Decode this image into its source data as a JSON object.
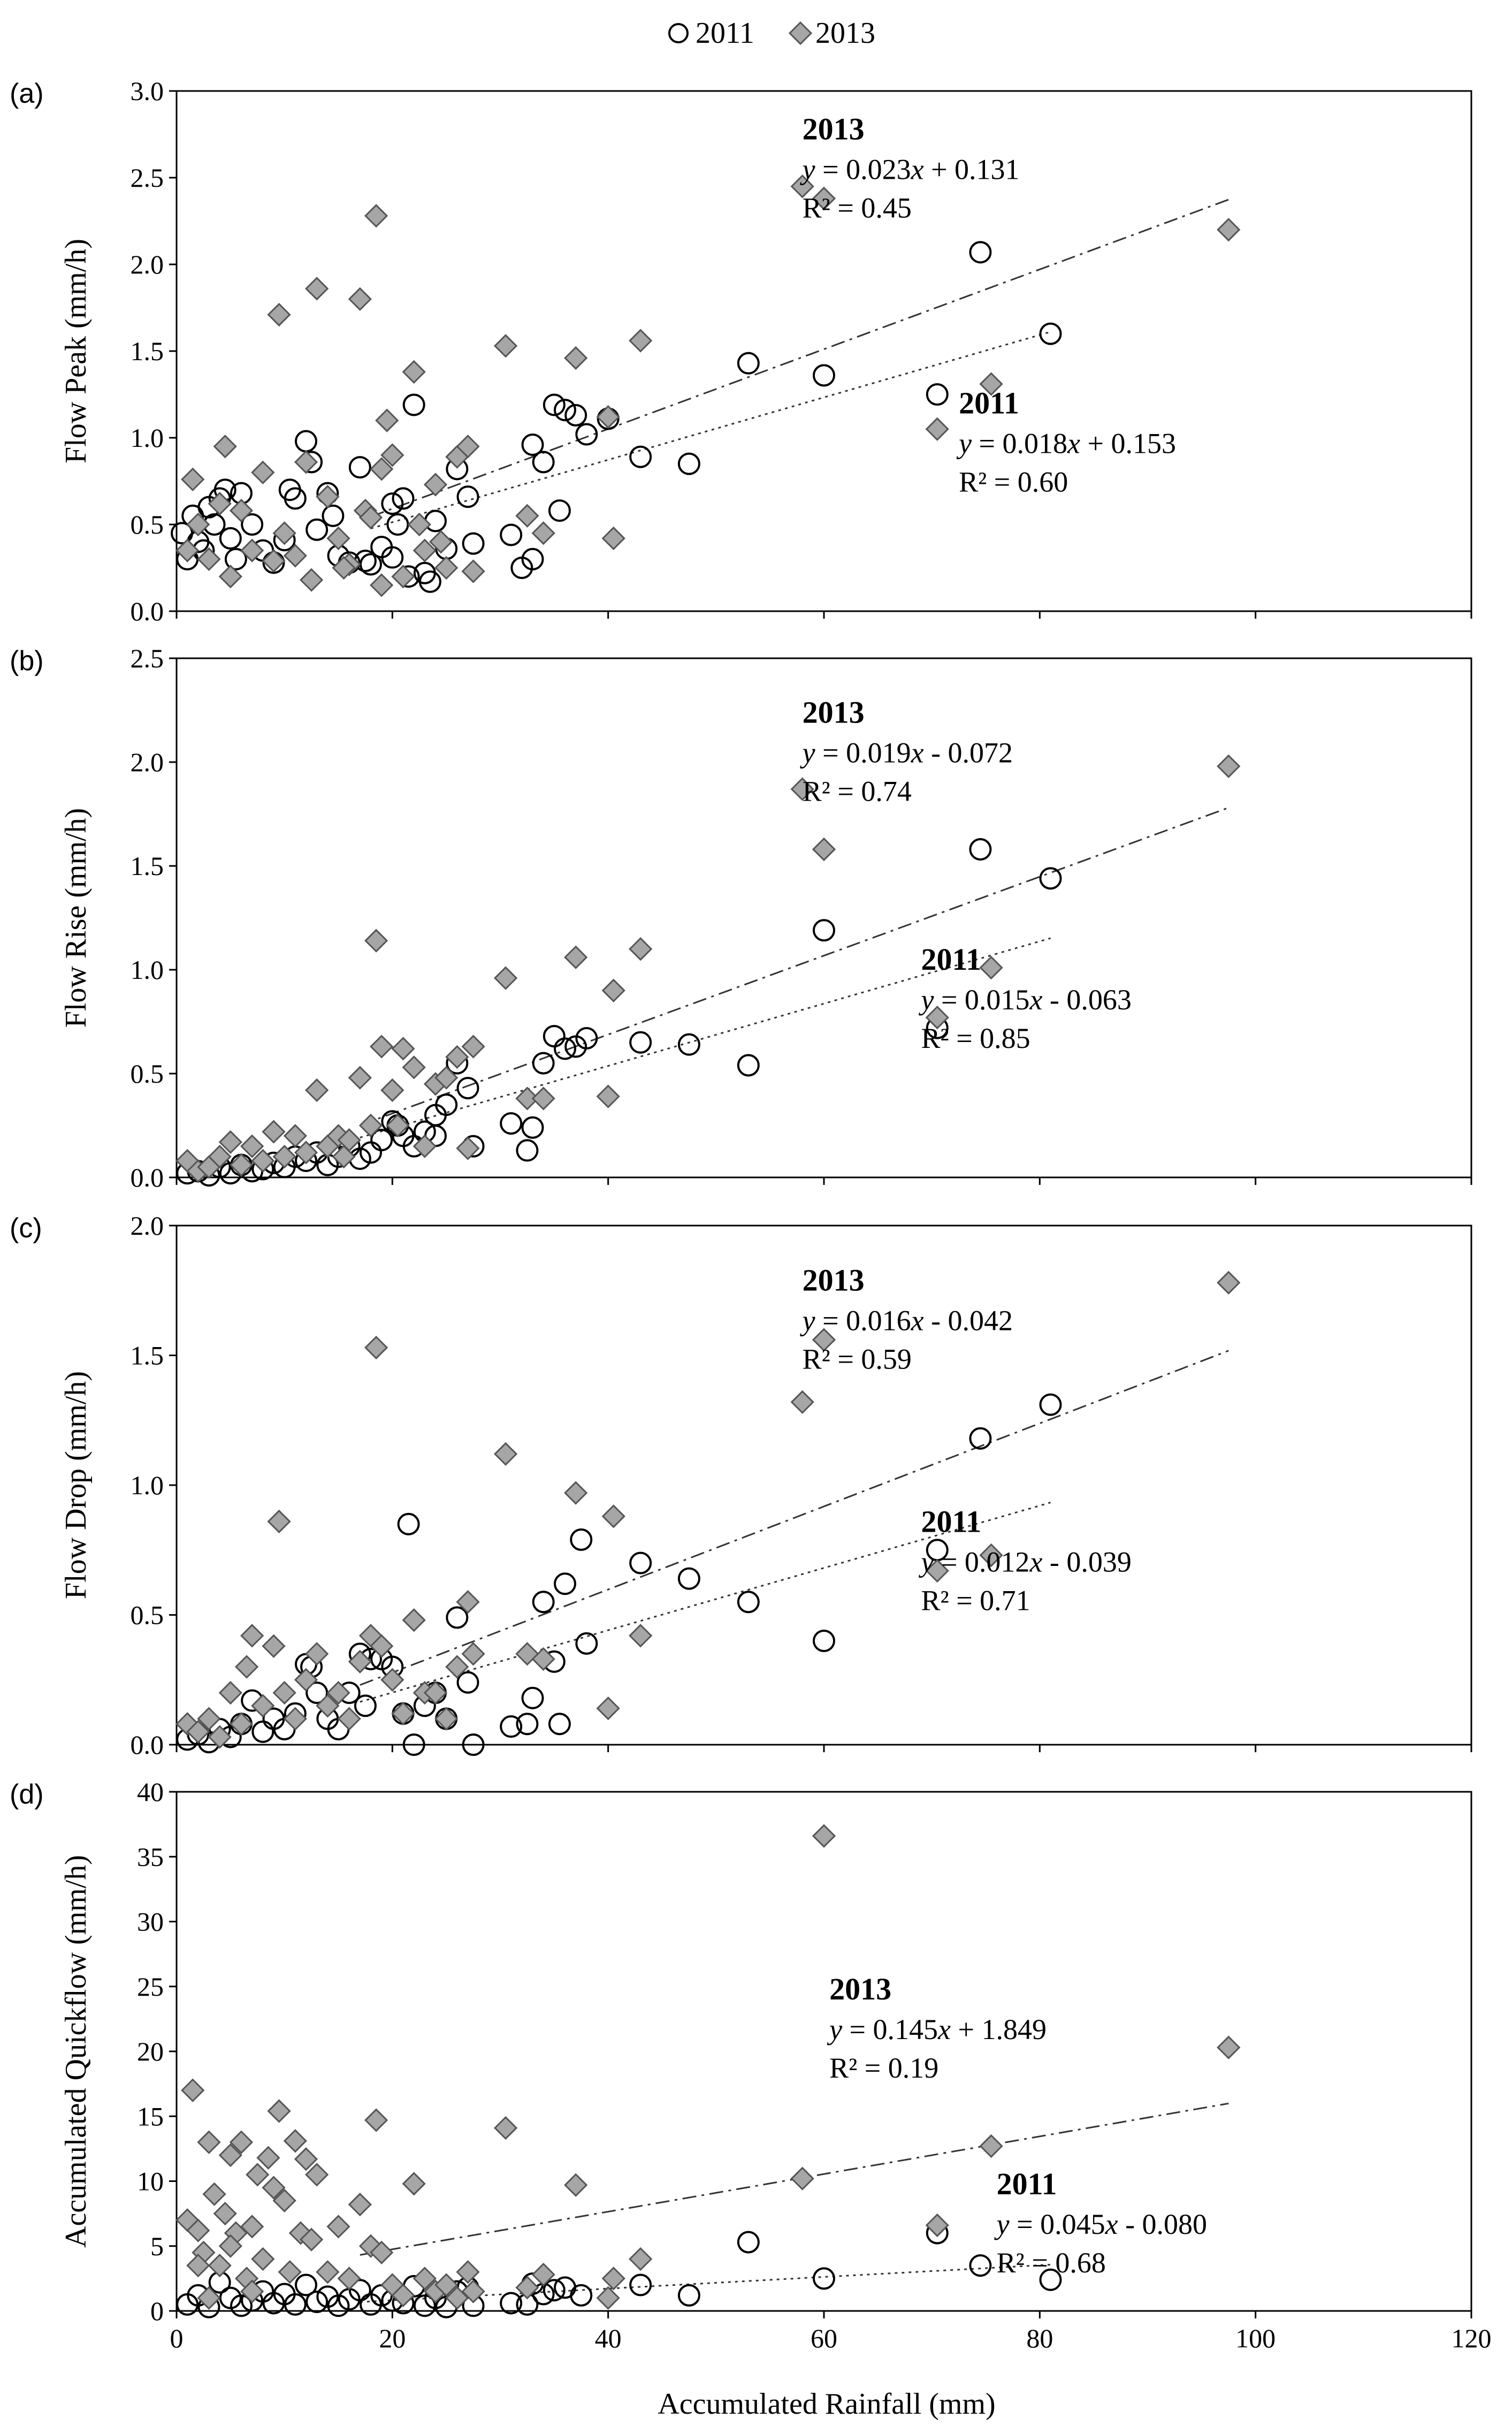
{
  "legend": {
    "items": [
      {
        "label": "2011",
        "marker": "circle",
        "fill": "#ffffff",
        "stroke": "#000000"
      },
      {
        "label": "2013",
        "marker": "diamond",
        "fill": "#a6a6a6",
        "stroke": "#555555"
      }
    ]
  },
  "x_axis": {
    "label": "Accumulated Rainfall (mm)",
    "range": [
      0,
      120
    ],
    "ticks": [
      0,
      20,
      40,
      60,
      80,
      100,
      120
    ]
  },
  "colors": {
    "circle_stroke": "#000000",
    "diamond_fill": "#a6a6a6",
    "diamond_stroke": "#555555",
    "trend": "#333333"
  },
  "chart_data": [
    {
      "type": "scatter",
      "panel": "(a)",
      "ylabel": "Flow Peak (mm/h)",
      "xlabel": "Accumulated Rainfall (mm)",
      "xlim": [
        0,
        120
      ],
      "ylim": [
        0,
        3.0
      ],
      "yticks": [
        0.0,
        0.5,
        1.0,
        1.5,
        2.0,
        2.5,
        3.0
      ],
      "ytick_decimals": 1,
      "series": [
        {
          "name": "2011",
          "marker": "circle",
          "x": [
            0.5,
            1,
            1.5,
            2,
            2.5,
            3,
            3.5,
            4,
            4.5,
            5,
            5.5,
            6,
            7,
            8,
            9,
            10,
            10.5,
            11,
            12,
            12.5,
            13,
            14,
            14.5,
            15,
            16,
            17,
            17.5,
            18,
            19,
            20,
            20.5,
            21,
            22,
            23,
            24,
            25,
            26,
            27,
            27.5,
            31,
            32,
            33,
            34,
            35,
            36,
            37,
            38,
            40,
            43,
            47.5,
            53,
            60,
            70.5,
            74.5,
            81,
            33,
            35.5,
            23.5,
            21.5,
            20
          ],
          "y": [
            0.45,
            0.3,
            0.55,
            0.4,
            0.35,
            0.6,
            0.5,
            0.65,
            0.7,
            0.42,
            0.3,
            0.68,
            0.5,
            0.35,
            0.28,
            0.41,
            0.7,
            0.65,
            0.98,
            0.86,
            0.47,
            0.68,
            0.55,
            0.32,
            0.28,
            0.83,
            0.29,
            0.27,
            0.37,
            0.62,
            0.5,
            0.65,
            1.19,
            0.22,
            0.52,
            0.36,
            0.82,
            0.66,
            0.39,
            0.44,
            0.25,
            0.96,
            0.86,
            1.19,
            1.16,
            1.13,
            1.02,
            1.11,
            0.89,
            0.85,
            1.43,
            1.36,
            1.25,
            2.07,
            1.6,
            0.3,
            0.58,
            0.17,
            0.2,
            0.31
          ]
        },
        {
          "name": "2013",
          "marker": "diamond",
          "x": [
            1,
            1.5,
            2,
            3,
            4,
            4.5,
            5,
            6,
            7,
            8,
            9,
            9.5,
            10,
            11,
            12,
            12.5,
            13,
            14,
            15,
            16,
            17,
            17.5,
            18,
            18.5,
            19,
            19.5,
            20,
            21,
            22,
            23,
            24,
            25,
            26,
            27,
            27.5,
            30.5,
            32.5,
            34,
            37,
            40,
            40.5,
            43,
            58,
            60,
            70.5,
            75.5,
            97.5,
            22.5,
            19,
            15.5,
            24.5
          ],
          "y": [
            0.35,
            0.76,
            0.5,
            0.3,
            0.62,
            0.95,
            0.2,
            0.58,
            0.35,
            0.8,
            0.29,
            1.71,
            0.45,
            0.32,
            0.86,
            0.18,
            1.86,
            0.66,
            0.42,
            0.27,
            1.8,
            0.58,
            0.54,
            2.28,
            0.82,
            1.1,
            0.9,
            0.2,
            1.38,
            0.35,
            0.73,
            0.25,
            0.89,
            0.95,
            0.23,
            1.53,
            0.55,
            0.45,
            1.46,
            1.12,
            0.42,
            1.56,
            2.45,
            2.38,
            1.05,
            1.31,
            2.2,
            0.5,
            0.15,
            0.25,
            0.4
          ]
        }
      ],
      "trendlines": [
        {
          "name": "2011",
          "slope": 0.018,
          "intercept": 0.153,
          "x_range": [
            18,
            81
          ],
          "dash": "dotted"
        },
        {
          "name": "2013",
          "slope": 0.023,
          "intercept": 0.131,
          "x_range": [
            18,
            97.5
          ],
          "dash": "dashdot"
        }
      ],
      "annotations": [
        {
          "title": "2013",
          "equation": "y = 0.023x + 0.131",
          "r2": "R² = 0.45",
          "at_x": 58,
          "at_y": 2.72
        },
        {
          "title": "2011",
          "equation": "y = 0.018x + 0.153",
          "r2": "R² = 0.60",
          "at_x": 72.5,
          "at_y": 1.14
        }
      ]
    },
    {
      "type": "scatter",
      "panel": "(b)",
      "ylabel": "Flow Rise (mm/h)",
      "xlabel": "Accumulated Rainfall (mm)",
      "xlim": [
        0,
        120
      ],
      "ylim": [
        0,
        2.5
      ],
      "yticks": [
        0.0,
        0.5,
        1.0,
        1.5,
        2.0,
        2.5
      ],
      "ytick_decimals": 1,
      "series": [
        {
          "name": "2011",
          "marker": "circle",
          "x": [
            1,
            2,
            3,
            4,
            5,
            6,
            7,
            8,
            9,
            10,
            11,
            12,
            13,
            14,
            15,
            16,
            17,
            18,
            19,
            20,
            21,
            22,
            23,
            24,
            25,
            26,
            27,
            27.5,
            31,
            32.5,
            33,
            34,
            35,
            36,
            37,
            38,
            43,
            47.5,
            53,
            60,
            70.5,
            74.5,
            81,
            20.5,
            24
          ],
          "y": [
            0.02,
            0.03,
            0.01,
            0.05,
            0.02,
            0.06,
            0.03,
            0.04,
            0.07,
            0.05,
            0.1,
            0.08,
            0.12,
            0.06,
            0.1,
            0.15,
            0.09,
            0.12,
            0.18,
            0.27,
            0.2,
            0.15,
            0.22,
            0.3,
            0.35,
            0.55,
            0.43,
            0.15,
            0.26,
            0.13,
            0.24,
            0.55,
            0.68,
            0.62,
            0.63,
            0.67,
            0.65,
            0.64,
            0.54,
            1.19,
            0.72,
            1.58,
            1.44,
            0.25,
            0.2
          ]
        },
        {
          "name": "2013",
          "marker": "diamond",
          "x": [
            1,
            2,
            3,
            4,
            5,
            6,
            7,
            8,
            9,
            10,
            11,
            12,
            13,
            14,
            15,
            16,
            17,
            18,
            18.5,
            19,
            20,
            21,
            22,
            23,
            24,
            25,
            26,
            27,
            27.5,
            30.5,
            32.5,
            34,
            37,
            40.5,
            43,
            40,
            58,
            60,
            70.5,
            75.5,
            97.5,
            20.5,
            15.5
          ],
          "y": [
            0.08,
            0.03,
            0.05,
            0.1,
            0.17,
            0.06,
            0.15,
            0.08,
            0.22,
            0.1,
            0.2,
            0.12,
            0.42,
            0.15,
            0.2,
            0.18,
            0.48,
            0.25,
            1.14,
            0.63,
            0.42,
            0.62,
            0.53,
            0.15,
            0.45,
            0.48,
            0.58,
            0.14,
            0.63,
            0.96,
            0.38,
            0.38,
            1.06,
            0.9,
            1.1,
            0.39,
            1.87,
            1.58,
            0.77,
            1.01,
            1.98,
            0.25,
            0.1
          ]
        }
      ],
      "trendlines": [
        {
          "name": "2011",
          "slope": 0.015,
          "intercept": -0.063,
          "x_range": [
            17,
            81
          ],
          "dash": "dotted"
        },
        {
          "name": "2013",
          "slope": 0.019,
          "intercept": -0.072,
          "x_range": [
            17,
            97.5
          ],
          "dash": "dashdot"
        }
      ],
      "annotations": [
        {
          "title": "2013",
          "equation": "y = 0.019x - 0.072",
          "r2": "R² = 0.74",
          "at_x": 58,
          "at_y": 2.19
        },
        {
          "title": "2011",
          "equation": "y = 0.015x - 0.063",
          "r2": "R² = 0.85",
          "at_x": 69,
          "at_y": 1.0
        }
      ]
    },
    {
      "type": "scatter",
      "panel": "(c)",
      "ylabel": "Flow Drop (mm/h)",
      "xlabel": "Accumulated Rainfall (mm)",
      "xlim": [
        0,
        120
      ],
      "ylim": [
        0,
        2.0
      ],
      "yticks": [
        0.0,
        0.5,
        1.0,
        1.5,
        2.0
      ],
      "ytick_decimals": 1,
      "series": [
        {
          "name": "2011",
          "marker": "circle",
          "x": [
            1,
            2,
            3,
            4,
            5,
            6,
            7,
            8,
            9,
            10,
            11,
            12,
            12.5,
            13,
            14,
            15,
            16,
            17,
            17.5,
            18,
            19,
            20,
            21,
            21.5,
            22,
            23,
            24,
            25,
            26,
            27,
            27.5,
            31,
            32.5,
            33,
            34,
            35,
            35.5,
            36,
            37.5,
            38,
            43,
            47.5,
            53,
            60,
            70.5,
            74.5,
            81
          ],
          "y": [
            0.02,
            0.04,
            0.01,
            0.06,
            0.03,
            0.08,
            0.17,
            0.05,
            0.1,
            0.06,
            0.12,
            0.31,
            0.3,
            0.2,
            0.1,
            0.06,
            0.2,
            0.35,
            0.15,
            0.33,
            0.33,
            0.3,
            0.12,
            0.85,
            0.0,
            0.15,
            0.2,
            0.1,
            0.49,
            0.24,
            0.0,
            0.07,
            0.08,
            0.18,
            0.55,
            0.32,
            0.08,
            0.62,
            0.79,
            0.39,
            0.7,
            0.64,
            0.55,
            0.4,
            0.75,
            1.18,
            1.31
          ],
          "_note": "read from gridlines"
        },
        {
          "name": "2013",
          "marker": "diamond",
          "x": [
            1,
            2,
            3,
            4,
            5,
            6,
            6.5,
            7,
            8,
            9,
            9.5,
            10,
            11,
            12,
            13,
            14,
            15,
            16,
            17,
            18,
            18.5,
            19,
            20,
            21,
            22,
            23,
            24,
            25,
            26,
            27,
            27.5,
            30.5,
            32.5,
            34,
            37,
            40,
            40.5,
            43,
            58,
            60,
            70.5,
            75.5,
            97.5
          ],
          "y": [
            0.08,
            0.05,
            0.1,
            0.03,
            0.2,
            0.08,
            0.3,
            0.42,
            0.15,
            0.38,
            0.86,
            0.2,
            0.1,
            0.25,
            0.35,
            0.15,
            0.2,
            0.1,
            0.32,
            0.42,
            1.53,
            0.38,
            0.25,
            0.12,
            0.48,
            0.2,
            0.2,
            0.1,
            0.3,
            0.55,
            0.35,
            1.12,
            0.35,
            0.33,
            0.97,
            0.14,
            0.88,
            0.42,
            1.32,
            1.56,
            0.67,
            0.73,
            1.78
          ]
        }
      ],
      "trendlines": [
        {
          "name": "2011",
          "slope": 0.012,
          "intercept": -0.039,
          "x_range": [
            17,
            81
          ],
          "dash": "dotted"
        },
        {
          "name": "2013",
          "slope": 0.016,
          "intercept": -0.042,
          "x_range": [
            17,
            97.5
          ],
          "dash": "dashdot"
        }
      ],
      "annotations": [
        {
          "title": "2013",
          "equation": "y = 0.016x - 0.042",
          "r2": "R² = 0.59",
          "at_x": 58,
          "at_y": 1.75
        },
        {
          "title": "2011",
          "equation": "y = 0.012x - 0.039",
          "r2": "R² = 0.71",
          "at_x": 69,
          "at_y": 0.82
        }
      ]
    },
    {
      "type": "scatter",
      "panel": "(d)",
      "ylabel": "Accumulated Quickflow (mm/h)",
      "xlabel": "Accumulated Rainfall (mm)",
      "xlim": [
        0,
        120
      ],
      "ylim": [
        0,
        40
      ],
      "yticks": [
        0,
        5,
        10,
        15,
        20,
        25,
        30,
        35,
        40
      ],
      "ytick_decimals": 0,
      "series": [
        {
          "name": "2011",
          "marker": "circle",
          "x": [
            1,
            2,
            3,
            4,
            5,
            6,
            7,
            8,
            9,
            10,
            11,
            12,
            13,
            14,
            15,
            16,
            17,
            18,
            19,
            20,
            21,
            22,
            23,
            24,
            25,
            26,
            27,
            27.5,
            31,
            32.5,
            33,
            34,
            35,
            36,
            37.5,
            43,
            47.5,
            53,
            60,
            70.5,
            74.5,
            81
          ],
          "y": [
            0.5,
            1.2,
            0.3,
            2.2,
            1.0,
            0.4,
            0.8,
            1.5,
            0.6,
            1.3,
            0.5,
            2.0,
            0.7,
            1.1,
            0.4,
            0.9,
            1.6,
            0.5,
            1.2,
            0.8,
            0.6,
            1.9,
            0.4,
            1.0,
            0.3,
            1.5,
            1.8,
            0.4,
            0.6,
            0.5,
            2.1,
            1.3,
            1.6,
            1.8,
            1.2,
            2.0,
            1.2,
            5.3,
            2.5,
            6.0,
            3.5,
            2.4
          ]
        },
        {
          "name": "2013",
          "marker": "diamond",
          "x": [
            1,
            1.5,
            2,
            2.5,
            3,
            3.5,
            4,
            4.5,
            5,
            5.5,
            6,
            6.5,
            7,
            7.5,
            8,
            8.5,
            9,
            9.5,
            10,
            10.5,
            11,
            11.5,
            12,
            12.5,
            13,
            14,
            15,
            16,
            17,
            18,
            18.5,
            19,
            20,
            21,
            22,
            23,
            24,
            25,
            26,
            27,
            27.5,
            30.5,
            32.5,
            34,
            37,
            40,
            40.5,
            43,
            58,
            60,
            70.5,
            75.5,
            97.5,
            2,
            3,
            5,
            7
          ],
          "y": [
            7.0,
            17.0,
            6.2,
            4.5,
            13.0,
            9.0,
            3.5,
            7.5,
            12.0,
            6.0,
            13.0,
            2.5,
            6.5,
            10.5,
            4.0,
            11.8,
            9.5,
            15.4,
            8.5,
            3.0,
            13.1,
            6.0,
            11.7,
            5.5,
            10.5,
            3.0,
            6.5,
            2.5,
            8.2,
            5.0,
            14.7,
            4.5,
            2.0,
            1.2,
            9.8,
            2.5,
            1.5,
            2.0,
            1.0,
            3.0,
            1.5,
            14.1,
            1.8,
            2.8,
            9.7,
            1.0,
            2.5,
            4.0,
            10.2,
            36.6,
            6.6,
            12.7,
            20.3,
            3.5,
            1.0,
            5.0,
            1.5
          ]
        }
      ],
      "trendlines": [
        {
          "name": "2011",
          "slope": 0.045,
          "intercept": -0.08,
          "x_range": [
            17,
            81
          ],
          "dash": "dotted"
        },
        {
          "name": "2013",
          "slope": 0.145,
          "intercept": 1.849,
          "x_range": [
            17,
            97.5
          ],
          "dash": "dashdot"
        }
      ],
      "annotations": [
        {
          "title": "2013",
          "equation": "y = 0.145x + 1.849",
          "r2": "R² = 0.19",
          "at_x": 60.5,
          "at_y": 24.0
        },
        {
          "title": "2011",
          "equation": "y = 0.045x - 0.080",
          "r2": "R² = 0.68",
          "at_x": 76,
          "at_y": 9.0
        }
      ]
    }
  ]
}
